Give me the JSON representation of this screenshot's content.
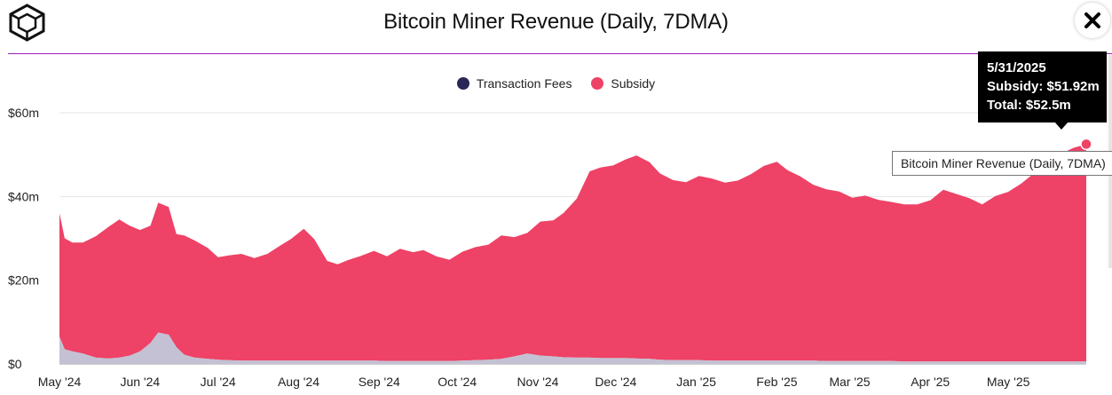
{
  "title": "Bitcoin Miner Revenue (Daily, 7DMA)",
  "logo_icon": "cube-logo-icon",
  "close_icon": "close-icon",
  "legend": [
    {
      "label": "Transaction Fees",
      "color": "#2a2657"
    },
    {
      "label": "Subsidy",
      "color": "#ee4266"
    }
  ],
  "tooltip": {
    "date": "5/31/2025",
    "subsidy": "Subsidy: $51.92m",
    "total": "Total: $52.5m"
  },
  "hover_label": "Bitcoin Miner Revenue (Daily, 7DMA)",
  "chart_data": {
    "type": "area",
    "title": "Bitcoin Miner Revenue (Daily, 7DMA)",
    "y_ticks": [
      "$0",
      "$20m",
      "$40m",
      "$60m"
    ],
    "ylim": [
      0,
      60
    ],
    "x_ticks": [
      "May '24",
      "Jun '24",
      "Jul '24",
      "Aug '24",
      "Sep '24",
      "Oct '24",
      "Nov '24",
      "Dec '24",
      "Jan '25",
      "Feb '25",
      "Mar '25",
      "Apr '25",
      "May '25"
    ],
    "x": [
      "2024-05-01",
      "2024-05-03",
      "2024-05-06",
      "2024-05-10",
      "2024-05-15",
      "2024-05-20",
      "2024-05-24",
      "2024-05-28",
      "2024-06-01",
      "2024-06-05",
      "2024-06-08",
      "2024-06-12",
      "2024-06-15",
      "2024-06-18",
      "2024-06-22",
      "2024-06-27",
      "2024-07-01",
      "2024-07-05",
      "2024-07-10",
      "2024-07-15",
      "2024-07-20",
      "2024-07-25",
      "2024-07-29",
      "2024-08-03",
      "2024-08-07",
      "2024-08-12",
      "2024-08-16",
      "2024-08-20",
      "2024-08-25",
      "2024-08-30",
      "2024-09-04",
      "2024-09-09",
      "2024-09-14",
      "2024-09-18",
      "2024-09-23",
      "2024-09-28",
      "2024-10-03",
      "2024-10-08",
      "2024-10-13",
      "2024-10-18",
      "2024-10-23",
      "2024-10-28",
      "2024-11-02",
      "2024-11-07",
      "2024-11-11",
      "2024-11-16",
      "2024-11-21",
      "2024-11-25",
      "2024-11-30",
      "2024-12-05",
      "2024-12-09",
      "2024-12-14",
      "2024-12-18",
      "2024-12-23",
      "2024-12-28",
      "2025-01-02",
      "2025-01-07",
      "2025-01-12",
      "2025-01-17",
      "2025-01-22",
      "2025-01-27",
      "2025-02-01",
      "2025-02-05",
      "2025-02-10",
      "2025-02-15",
      "2025-02-20",
      "2025-02-25",
      "2025-03-02",
      "2025-03-07",
      "2025-03-12",
      "2025-03-17",
      "2025-03-22",
      "2025-03-27",
      "2025-04-01",
      "2025-04-06",
      "2025-04-11",
      "2025-04-16",
      "2025-04-21",
      "2025-04-26",
      "2025-05-01",
      "2025-05-06",
      "2025-05-11",
      "2025-05-16",
      "2025-05-21",
      "2025-05-26",
      "2025-05-31"
    ],
    "series": [
      {
        "name": "Transaction Fees",
        "color": "#2a2657",
        "values": [
          6.5,
          3.5,
          3.0,
          2.5,
          1.5,
          1.3,
          1.5,
          2.0,
          3.0,
          5.0,
          7.5,
          7.0,
          4.0,
          2.2,
          1.5,
          1.2,
          1.0,
          0.9,
          0.8,
          0.8,
          0.8,
          0.8,
          0.8,
          0.8,
          0.8,
          0.8,
          0.8,
          0.8,
          0.8,
          0.8,
          0.7,
          0.7,
          0.7,
          0.7,
          0.7,
          0.7,
          0.8,
          0.9,
          1.0,
          1.2,
          1.8,
          2.5,
          2.0,
          1.8,
          1.6,
          1.5,
          1.5,
          1.4,
          1.4,
          1.4,
          1.3,
          1.2,
          1.0,
          0.9,
          0.9,
          0.9,
          0.8,
          0.8,
          0.8,
          0.8,
          0.8,
          0.8,
          0.8,
          0.8,
          0.8,
          0.7,
          0.7,
          0.7,
          0.7,
          0.7,
          0.7,
          0.6,
          0.6,
          0.6,
          0.6,
          0.6,
          0.6,
          0.6,
          0.6,
          0.6,
          0.6,
          0.6,
          0.6,
          0.6,
          0.6,
          0.58
        ]
      },
      {
        "name": "Subsidy",
        "color": "#ee4266",
        "values": [
          29.5,
          26.5,
          26.0,
          26.5,
          29.0,
          31.5,
          33.0,
          31.0,
          29.0,
          28.0,
          31.0,
          30.5,
          27.0,
          28.5,
          28.0,
          26.5,
          24.5,
          25.0,
          25.5,
          24.5,
          25.5,
          27.5,
          29.0,
          31.5,
          29.0,
          23.8,
          23.0,
          24.0,
          25.0,
          26.2,
          25.0,
          26.8,
          26.0,
          26.5,
          25.0,
          24.2,
          26.0,
          27.0,
          27.5,
          29.5,
          28.5,
          28.8,
          32.0,
          32.5,
          34.5,
          38.0,
          44.5,
          45.5,
          46.0,
          47.5,
          48.5,
          47.0,
          44.5,
          43.0,
          42.5,
          44.0,
          43.5,
          42.5,
          43.0,
          44.5,
          46.5,
          47.5,
          45.5,
          44.0,
          42.0,
          41.0,
          40.5,
          39.0,
          39.5,
          38.5,
          38.0,
          37.5,
          37.5,
          38.5,
          41.0,
          40.0,
          39.0,
          37.5,
          39.5,
          40.5,
          42.5,
          45.0,
          47.0,
          49.5,
          51.0,
          51.92
        ]
      }
    ],
    "tooltip_point": {
      "x": "2025-05-31",
      "subsidy": 51.92,
      "total": 52.5
    }
  }
}
